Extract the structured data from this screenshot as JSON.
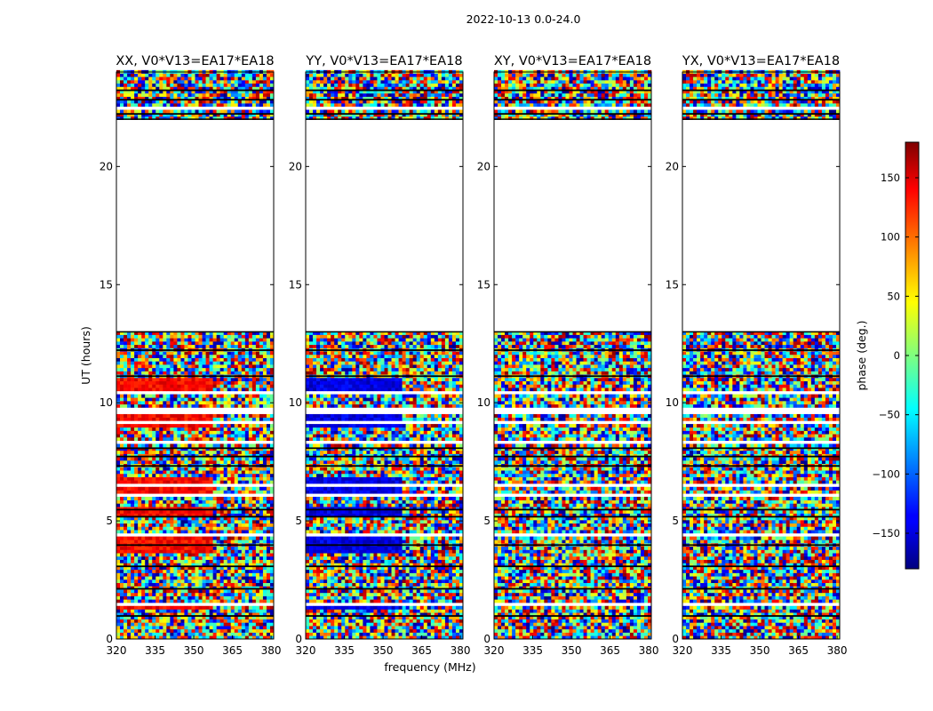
{
  "figure": {
    "suptitle": "2022-10-13 0.0-24.0",
    "xlabel": "frequency (MHz)",
    "ylabel": "UT (hours)"
  },
  "chart_data": {
    "type": "heatmap",
    "title": "2022-10-13 0.0-24.0",
    "xlabel": "frequency (MHz)",
    "ylabel": "UT (hours)",
    "xlim": [
      320,
      381
    ],
    "ylim": [
      0,
      24
    ],
    "xticks": [
      320,
      335,
      350,
      365,
      380
    ],
    "yticks": [
      0,
      5,
      10,
      15,
      20
    ],
    "data_gap_hours": [
      13.0,
      22.0
    ],
    "panels": [
      {
        "title": "XX, V0*V13=EA17*EA18",
        "polarization": "XX",
        "baseline": "V0*V13=EA17*EA18",
        "coherent_phase_deg": 135
      },
      {
        "title": "YY, V0*V13=EA17*EA18",
        "polarization": "YY",
        "baseline": "V0*V13=EA17*EA18",
        "coherent_phase_deg": -145
      },
      {
        "title": "XY, V0*V13=EA17*EA18",
        "polarization": "XY",
        "baseline": "V0*V13=EA17*EA18",
        "coherent_phase_deg": null
      },
      {
        "title": "YX, V0*V13=EA17*EA18",
        "polarization": "YX",
        "baseline": "V0*V13=EA17*EA18",
        "coherent_phase_deg": null
      }
    ],
    "colorbar": {
      "label": "phase (deg.)",
      "range": [
        -180,
        180
      ],
      "ticks": [
        -150,
        -100,
        -50,
        0,
        50,
        100,
        150
      ],
      "colormap": "jet"
    }
  },
  "colors": {
    "flagged": "#000000",
    "background": "#ffffff"
  }
}
